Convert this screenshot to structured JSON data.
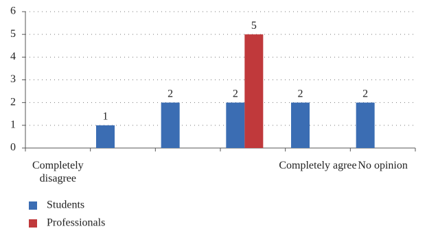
{
  "chart_data": {
    "type": "bar",
    "categories": [
      "Completely disagree",
      null,
      null,
      null,
      "Completely agree",
      "No opinion"
    ],
    "series": [
      {
        "name": "Students",
        "color": "#3b6db3",
        "values": [
          null,
          1,
          2,
          2,
          2,
          2
        ]
      },
      {
        "name": "Professionals",
        "color": "#c0393b",
        "values": [
          null,
          null,
          null,
          5,
          null,
          null
        ]
      }
    ],
    "ylim": [
      0,
      6
    ],
    "yticks": [
      0,
      1,
      2,
      3,
      4,
      5,
      6
    ],
    "grid": true,
    "legend": "bottom-left"
  }
}
